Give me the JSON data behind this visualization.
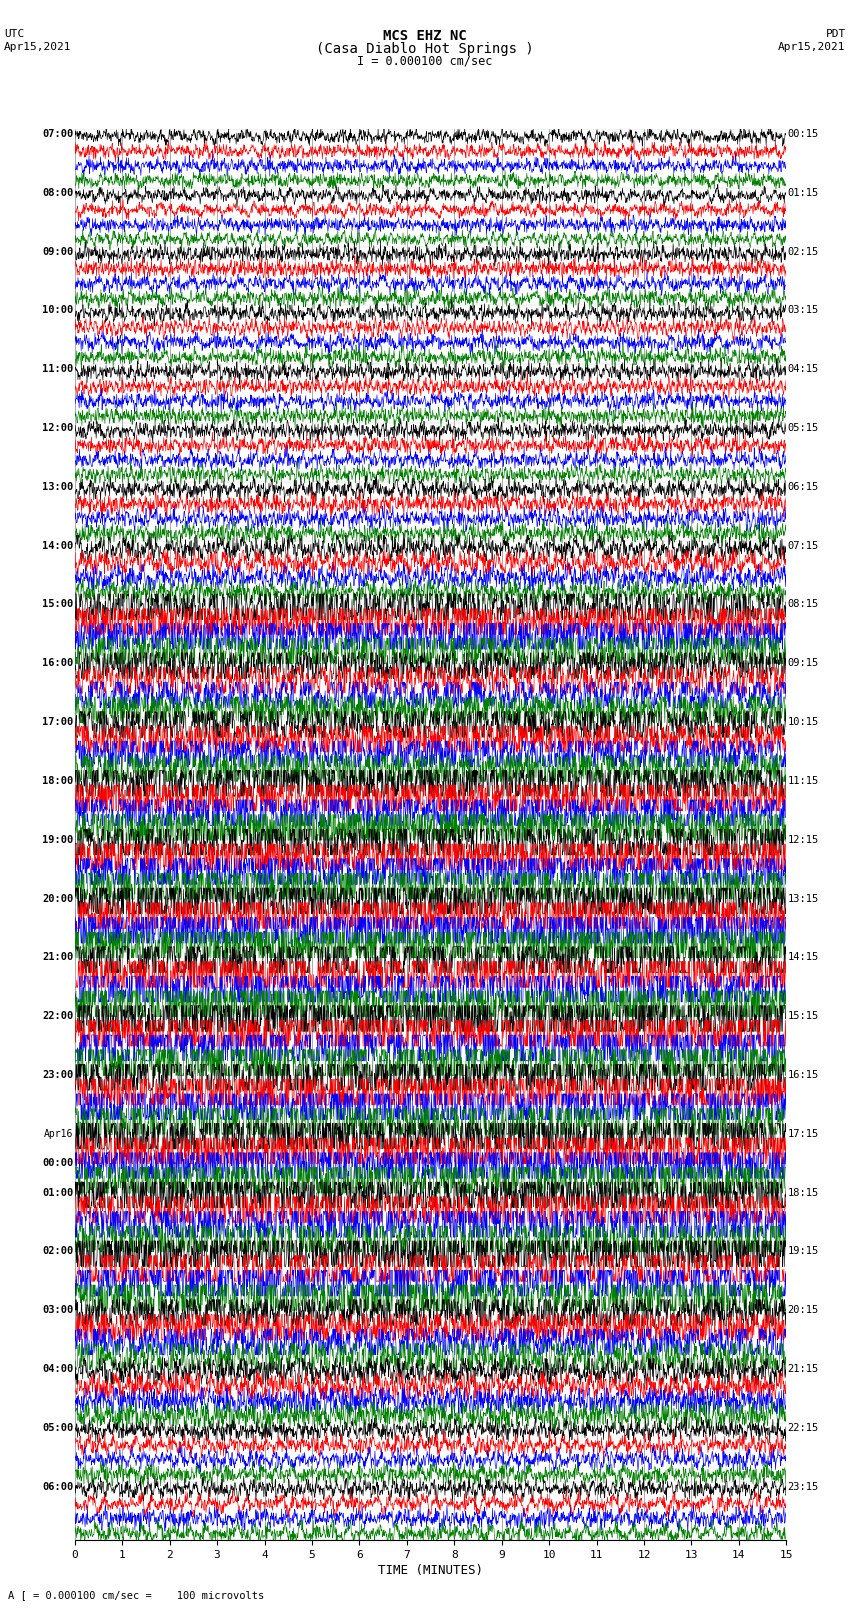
{
  "title_line1": "MCS EHZ NC",
  "title_line2": "(Casa Diablo Hot Springs )",
  "scale_label": "I = 0.000100 cm/sec",
  "footer_label": "A [ = 0.000100 cm/sec =    100 microvolts",
  "xlabel": "TIME (MINUTES)",
  "left_times": [
    "07:00",
    "08:00",
    "09:00",
    "10:00",
    "11:00",
    "12:00",
    "13:00",
    "14:00",
    "15:00",
    "16:00",
    "17:00",
    "18:00",
    "19:00",
    "20:00",
    "21:00",
    "22:00",
    "23:00",
    "Apr16\n00:00",
    "01:00",
    "02:00",
    "03:00",
    "04:00",
    "05:00",
    "06:00"
  ],
  "right_times": [
    "00:15",
    "01:15",
    "02:15",
    "03:15",
    "04:15",
    "05:15",
    "06:15",
    "07:15",
    "08:15",
    "09:15",
    "10:15",
    "11:15",
    "12:15",
    "13:15",
    "14:15",
    "15:15",
    "16:15",
    "17:15",
    "18:15",
    "19:15",
    "20:15",
    "21:15",
    "22:15",
    "23:15"
  ],
  "n_rows": 24,
  "traces_per_row": 4,
  "colors": [
    "black",
    "red",
    "blue",
    "green"
  ],
  "n_points": 1800,
  "xmin": 0,
  "xmax": 15,
  "figsize": [
    8.5,
    16.13
  ],
  "dpi": 100,
  "bg_color": "white",
  "xticks": [
    0,
    1,
    2,
    3,
    4,
    5,
    6,
    7,
    8,
    9,
    10,
    11,
    12,
    13,
    14,
    15
  ],
  "row_amplitudes": [
    0.06,
    0.06,
    0.07,
    0.07,
    0.07,
    0.07,
    0.08,
    0.1,
    0.22,
    0.18,
    0.2,
    0.25,
    0.28,
    0.3,
    0.32,
    0.35,
    0.32,
    0.3,
    0.28,
    0.3,
    0.18,
    0.12,
    0.08,
    0.08
  ]
}
